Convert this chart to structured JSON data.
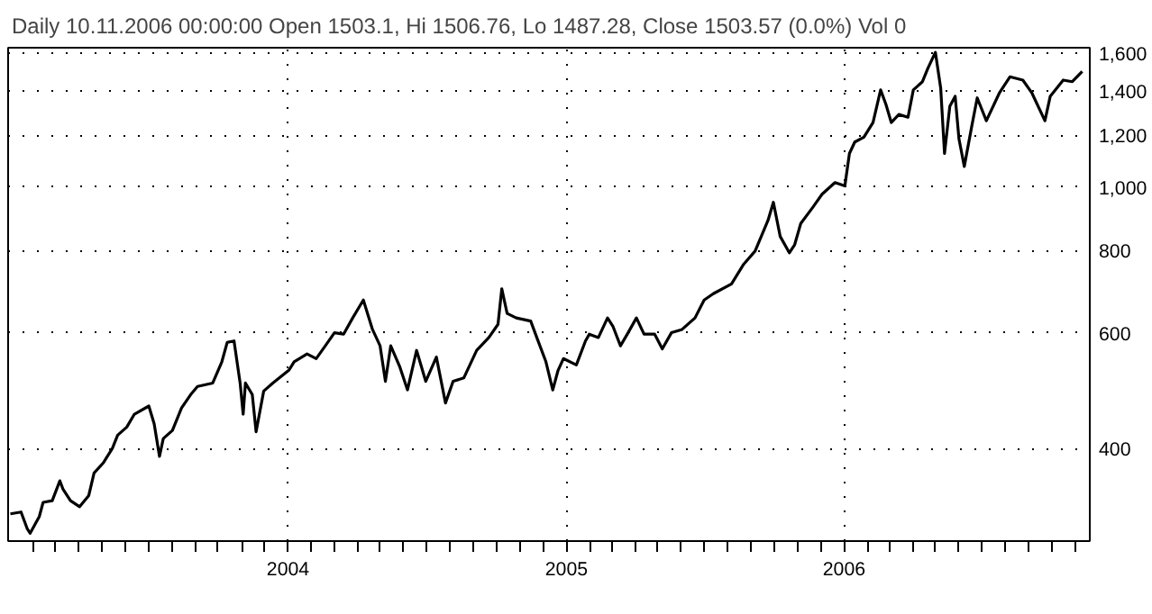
{
  "chart_data": {
    "type": "line",
    "title": "Daily 10.11.2006 00:00:00 Open 1503.1, Hi 1506.76, Lo 1487.28, Close 1503.57 (0.0%) Vol 0",
    "log": "y",
    "grid": true,
    "xlim": [
      "2002-12-29",
      "2006-11-20"
    ],
    "xticks": [
      {
        "value": "2003-02-01",
        "label": null
      },
      {
        "value": "2003-03-01",
        "label": null
      },
      {
        "value": "2003-04-01",
        "label": null
      },
      {
        "value": "2003-05-01",
        "label": null
      },
      {
        "value": "2003-06-01",
        "label": null
      },
      {
        "value": "2003-07-01",
        "label": null
      },
      {
        "value": "2003-08-01",
        "label": null
      },
      {
        "value": "2003-09-01",
        "label": null
      },
      {
        "value": "2003-10-01",
        "label": null
      },
      {
        "value": "2003-11-01",
        "label": null
      },
      {
        "value": "2003-12-01",
        "label": null
      },
      {
        "value": "2004-01-01",
        "label": "2004"
      },
      {
        "value": "2004-02-01",
        "label": null
      },
      {
        "value": "2004-03-01",
        "label": null
      },
      {
        "value": "2004-04-01",
        "label": null
      },
      {
        "value": "2004-05-01",
        "label": null
      },
      {
        "value": "2004-06-01",
        "label": null
      },
      {
        "value": "2004-07-01",
        "label": null
      },
      {
        "value": "2004-08-01",
        "label": null
      },
      {
        "value": "2004-09-01",
        "label": null
      },
      {
        "value": "2004-10-01",
        "label": null
      },
      {
        "value": "2004-11-01",
        "label": null
      },
      {
        "value": "2004-12-01",
        "label": null
      },
      {
        "value": "2005-01-01",
        "label": "2005"
      },
      {
        "value": "2005-02-01",
        "label": null
      },
      {
        "value": "2005-03-01",
        "label": null
      },
      {
        "value": "2005-04-01",
        "label": null
      },
      {
        "value": "2005-05-01",
        "label": null
      },
      {
        "value": "2005-06-01",
        "label": null
      },
      {
        "value": "2005-07-01",
        "label": null
      },
      {
        "value": "2005-08-01",
        "label": null
      },
      {
        "value": "2005-09-01",
        "label": null
      },
      {
        "value": "2005-10-01",
        "label": null
      },
      {
        "value": "2005-11-01",
        "label": null
      },
      {
        "value": "2005-12-01",
        "label": null
      },
      {
        "value": "2006-01-01",
        "label": "2006"
      },
      {
        "value": "2006-02-01",
        "label": null
      },
      {
        "value": "2006-03-01",
        "label": null
      },
      {
        "value": "2006-04-01",
        "label": null
      },
      {
        "value": "2006-05-01",
        "label": null
      },
      {
        "value": "2006-06-01",
        "label": null
      },
      {
        "value": "2006-07-01",
        "label": null
      },
      {
        "value": "2006-08-01",
        "label": null
      },
      {
        "value": "2006-09-01",
        "label": null
      },
      {
        "value": "2006-10-01",
        "label": null
      },
      {
        "value": "2006-11-01",
        "label": null
      }
    ],
    "ylim": [
      289,
      1630
    ],
    "yticks": [
      400,
      600,
      800,
      {
        "value": 1000,
        "label": "1,000"
      },
      {
        "value": 1200,
        "label": "1,200"
      },
      {
        "value": 1400,
        "label": "1,400"
      },
      {
        "value": 1600,
        "label": "1,600"
      }
    ],
    "series": [
      {
        "color": "#000000",
        "x": [
          "2003-01-01",
          "2003-01-15",
          "2003-01-23",
          "2003-01-27",
          "2003-02-08",
          "2003-02-13",
          "2003-02-25",
          "2003-03-07",
          "2003-03-11",
          "2003-03-21",
          "2003-04-02",
          "2003-04-14",
          "2003-04-21",
          "2003-05-03",
          "2003-05-15",
          "2003-05-22",
          "2003-06-03",
          "2003-06-13",
          "2003-07-02",
          "2003-07-09",
          "2003-07-16",
          "2003-07-21",
          "2003-08-02",
          "2003-08-14",
          "2003-08-26",
          "2003-09-04",
          "2003-09-24",
          "2003-10-06",
          "2003-10-13",
          "2003-10-22",
          "2003-10-30",
          "2003-11-03",
          "2003-11-06",
          "2003-11-15",
          "2003-11-20",
          "2003-11-30",
          "2003-12-12",
          "2004-01-02",
          "2004-01-09",
          "2004-01-26",
          "2004-02-07",
          "2004-02-19",
          "2004-03-02",
          "2004-03-14",
          "2004-03-26",
          "2004-04-09",
          "2004-04-21",
          "2004-05-01",
          "2004-05-08",
          "2004-05-15",
          "2004-05-27",
          "2004-06-06",
          "2004-06-18",
          "2004-06-30",
          "2004-07-14",
          "2004-07-26",
          "2004-08-05",
          "2004-08-19",
          "2004-09-05",
          "2004-09-21",
          "2004-10-03",
          "2004-10-08",
          "2004-10-15",
          "2004-10-27",
          "2004-11-15",
          "2004-11-23",
          "2004-12-05",
          "2004-12-14",
          "2004-12-21",
          "2004-12-28",
          "2005-01-14",
          "2005-01-26",
          "2005-01-31",
          "2005-02-12",
          "2005-02-24",
          "2005-03-03",
          "2005-03-13",
          "2005-03-22",
          "2005-04-03",
          "2005-04-13",
          "2005-04-27",
          "2005-05-07",
          "2005-05-19",
          "2005-06-02",
          "2005-06-19",
          "2005-07-01",
          "2005-07-13",
          "2005-08-06",
          "2005-08-22",
          "2005-09-06",
          "2005-09-23",
          "2005-09-30",
          "2005-10-09",
          "2005-10-21",
          "2005-10-28",
          "2005-11-05",
          "2005-11-21",
          "2005-12-03",
          "2005-12-20",
          "2006-01-02",
          "2006-01-08",
          "2006-01-15",
          "2006-01-27",
          "2006-02-08",
          "2006-02-18",
          "2006-02-25",
          "2006-03-04",
          "2006-03-14",
          "2006-03-26",
          "2006-04-02",
          "2006-04-14",
          "2006-04-21",
          "2006-04-26",
          "2006-05-01",
          "2006-05-08",
          "2006-05-13",
          "2006-05-20",
          "2006-05-27",
          "2006-06-01",
          "2006-06-08",
          "2006-06-18",
          "2006-06-25",
          "2006-07-07",
          "2006-07-24",
          "2006-08-07",
          "2006-08-24",
          "2006-09-05",
          "2006-09-22",
          "2006-09-29",
          "2006-10-16",
          "2006-10-28",
          "2006-11-10"
        ],
        "values": [
          318,
          320,
          302,
          297,
          315,
          331,
          333,
          357,
          347,
          333,
          326,
          339,
          367,
          380,
          400,
          419,
          431,
          451,
          464,
          436,
          389,
          414,
          426,
          461,
          483,
          497,
          503,
          542,
          580,
          583,
          503,
          451,
          503,
          483,
          424,
          489,
          503,
          526,
          542,
          557,
          548,
          573,
          600,
          597,
          632,
          673,
          607,
          573,
          506,
          573,
          532,
          491,
          564,
          506,
          551,
          469,
          506,
          512,
          564,
          590,
          618,
          700,
          642,
          632,
          625,
          590,
          542,
          491,
          526,
          548,
          536,
          583,
          597,
          590,
          632,
          614,
          573,
          597,
          632,
          597,
          597,
          567,
          600,
          607,
          632,
          673,
          688,
          712,
          763,
          799,
          890,
          948,
          841,
          794,
          817,
          880,
          932,
          975,
          1016,
          1004,
          1125,
          1171,
          1191,
          1254,
          1406,
          1336,
          1254,
          1290,
          1277,
          1406,
          1447,
          1515,
          1559,
          1604,
          1414,
          1125,
          1328,
          1375,
          1184,
          1075,
          1241,
          1367,
          1262,
          1390,
          1472,
          1455,
          1390,
          1262,
          1375,
          1455,
          1447,
          1500
        ]
      }
    ]
  }
}
